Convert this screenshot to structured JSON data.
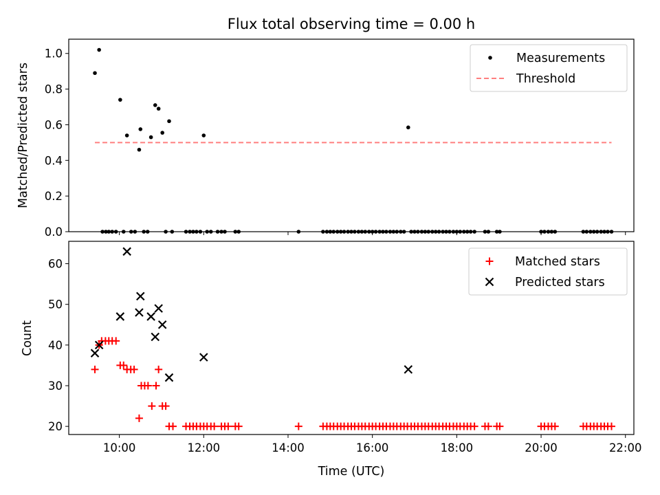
{
  "chart_data": [
    {
      "type": "scatter",
      "title": "Flux total observing time = 0.00 h",
      "xlabel": "",
      "ylabel": "Matched/Predicted stars",
      "xlim_hours": [
        8.8,
        22.2
      ],
      "ylim": [
        0,
        1.08
      ],
      "yticks": [
        0.0,
        0.2,
        0.4,
        0.6,
        0.8,
        1.0
      ],
      "ytick_labels": [
        "0.0",
        "0.2",
        "0.4",
        "0.6",
        "0.8",
        "1.0"
      ],
      "grid": false,
      "legend_position": "top-right",
      "series": [
        {
          "name": "Measurements",
          "marker": "dot",
          "color": "#000000",
          "points": [
            [
              9.42,
              0.89
            ],
            [
              9.52,
              1.02
            ],
            [
              10.02,
              0.74
            ],
            [
              10.18,
              0.54
            ],
            [
              10.5,
              0.575
            ],
            [
              10.47,
              0.46
            ],
            [
              10.75,
              0.53
            ],
            [
              10.85,
              0.71
            ],
            [
              10.93,
              0.69
            ],
            [
              11.02,
              0.555
            ],
            [
              11.18,
              0.62
            ],
            [
              12.0,
              0.54
            ],
            [
              16.85,
              0.585
            ]
          ],
          "zero_value_times": [
            9.6,
            9.68,
            9.75,
            9.83,
            9.92,
            10.1,
            10.28,
            10.37,
            10.58,
            10.67,
            11.1,
            11.25,
            11.58,
            11.67,
            11.75,
            11.83,
            11.92,
            12.08,
            12.17,
            12.33,
            12.42,
            12.5,
            12.75,
            12.83,
            14.25,
            14.83,
            14.92,
            15.0,
            15.08,
            15.17,
            15.25,
            15.33,
            15.42,
            15.5,
            15.58,
            15.67,
            15.75,
            15.83,
            15.92,
            16.0,
            16.08,
            16.17,
            16.25,
            16.33,
            16.42,
            16.5,
            16.58,
            16.67,
            16.75,
            16.92,
            17.0,
            17.08,
            17.17,
            17.25,
            17.33,
            17.42,
            17.5,
            17.58,
            17.67,
            17.75,
            17.83,
            17.92,
            18.0,
            18.08,
            18.17,
            18.25,
            18.33,
            18.42,
            18.67,
            18.75,
            18.95,
            19.02,
            20.0,
            20.08,
            20.17,
            20.25,
            20.33,
            21.0,
            21.08,
            21.17,
            21.25,
            21.33,
            21.42,
            21.5,
            21.58,
            21.67
          ]
        },
        {
          "name": "Threshold",
          "style": "dashed",
          "color": "#ff7f7f",
          "x_range": [
            9.42,
            21.67
          ],
          "y": 0.5
        }
      ]
    },
    {
      "type": "scatter",
      "title": "",
      "xlabel": "Time (UTC)",
      "ylabel": "Count",
      "xlim_hours": [
        8.8,
        22.2
      ],
      "ylim": [
        18,
        65.5
      ],
      "yticks": [
        20,
        30,
        40,
        50,
        60
      ],
      "ytick_labels": [
        "20",
        "30",
        "40",
        "50",
        "60"
      ],
      "xticks_hours": [
        10,
        12,
        14,
        16,
        18,
        20,
        22
      ],
      "xtick_labels": [
        "10:00",
        "12:00",
        "14:00",
        "16:00",
        "18:00",
        "20:00",
        "22:00"
      ],
      "grid": false,
      "legend_position": "top-right",
      "series": [
        {
          "name": "Matched stars",
          "marker": "plus",
          "color": "#ff0000",
          "points": [
            [
              9.42,
              34
            ],
            [
              9.52,
              40
            ],
            [
              9.58,
              41
            ],
            [
              9.67,
              41
            ],
            [
              9.75,
              41
            ],
            [
              9.83,
              41
            ],
            [
              9.92,
              41
            ],
            [
              10.02,
              35
            ],
            [
              10.1,
              35
            ],
            [
              10.18,
              34
            ],
            [
              10.27,
              34
            ],
            [
              10.35,
              34
            ],
            [
              10.47,
              22
            ],
            [
              10.52,
              30
            ],
            [
              10.6,
              30
            ],
            [
              10.68,
              30
            ],
            [
              10.77,
              25
            ],
            [
              10.87,
              30
            ],
            [
              10.93,
              34
            ],
            [
              11.02,
              25
            ],
            [
              11.1,
              25
            ],
            [
              11.18,
              20
            ],
            [
              11.27,
              20
            ],
            [
              11.58,
              20
            ],
            [
              11.67,
              20
            ],
            [
              11.75,
              20
            ],
            [
              11.83,
              20
            ],
            [
              11.92,
              20
            ],
            [
              12.0,
              20
            ],
            [
              12.08,
              20
            ],
            [
              12.17,
              20
            ],
            [
              12.25,
              20
            ],
            [
              12.42,
              20
            ],
            [
              12.5,
              20
            ],
            [
              12.58,
              20
            ],
            [
              12.75,
              20
            ],
            [
              12.83,
              20
            ],
            [
              14.25,
              20
            ],
            [
              14.83,
              20
            ],
            [
              14.92,
              20
            ],
            [
              15.0,
              20
            ],
            [
              15.08,
              20
            ],
            [
              15.17,
              20
            ],
            [
              15.25,
              20
            ],
            [
              15.33,
              20
            ],
            [
              15.42,
              20
            ],
            [
              15.5,
              20
            ],
            [
              15.58,
              20
            ],
            [
              15.67,
              20
            ],
            [
              15.75,
              20
            ],
            [
              15.83,
              20
            ],
            [
              15.92,
              20
            ],
            [
              16.0,
              20
            ],
            [
              16.08,
              20
            ],
            [
              16.17,
              20
            ],
            [
              16.25,
              20
            ],
            [
              16.33,
              20
            ],
            [
              16.42,
              20
            ],
            [
              16.5,
              20
            ],
            [
              16.58,
              20
            ],
            [
              16.67,
              20
            ],
            [
              16.75,
              20
            ],
            [
              16.83,
              20
            ],
            [
              16.92,
              20
            ],
            [
              17.0,
              20
            ],
            [
              17.08,
              20
            ],
            [
              17.17,
              20
            ],
            [
              17.25,
              20
            ],
            [
              17.33,
              20
            ],
            [
              17.42,
              20
            ],
            [
              17.5,
              20
            ],
            [
              17.58,
              20
            ],
            [
              17.67,
              20
            ],
            [
              17.75,
              20
            ],
            [
              17.83,
              20
            ],
            [
              17.92,
              20
            ],
            [
              18.0,
              20
            ],
            [
              18.08,
              20
            ],
            [
              18.17,
              20
            ],
            [
              18.25,
              20
            ],
            [
              18.33,
              20
            ],
            [
              18.42,
              20
            ],
            [
              18.67,
              20
            ],
            [
              18.75,
              20
            ],
            [
              18.95,
              20
            ],
            [
              19.02,
              20
            ],
            [
              20.0,
              20
            ],
            [
              20.08,
              20
            ],
            [
              20.17,
              20
            ],
            [
              20.25,
              20
            ],
            [
              20.33,
              20
            ],
            [
              21.0,
              20
            ],
            [
              21.08,
              20
            ],
            [
              21.17,
              20
            ],
            [
              21.25,
              20
            ],
            [
              21.33,
              20
            ],
            [
              21.42,
              20
            ],
            [
              21.5,
              20
            ],
            [
              21.58,
              20
            ],
            [
              21.67,
              20
            ]
          ]
        },
        {
          "name": "Predicted stars",
          "marker": "x",
          "color": "#000000",
          "points": [
            [
              9.42,
              38
            ],
            [
              9.52,
              40
            ],
            [
              10.02,
              47
            ],
            [
              10.18,
              63
            ],
            [
              10.5,
              52
            ],
            [
              10.47,
              48
            ],
            [
              10.75,
              47
            ],
            [
              10.85,
              42
            ],
            [
              10.93,
              49
            ],
            [
              11.02,
              45
            ],
            [
              11.18,
              32
            ],
            [
              12.0,
              37
            ],
            [
              16.85,
              34
            ]
          ]
        }
      ]
    }
  ]
}
